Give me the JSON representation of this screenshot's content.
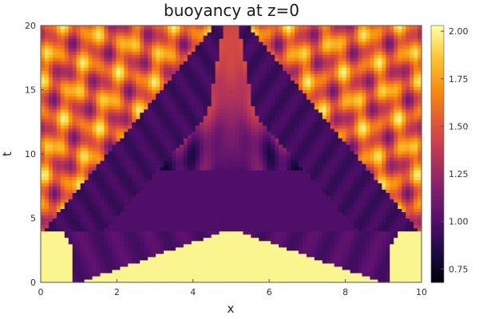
{
  "chart_data": {
    "type": "heatmap",
    "title": "buoyancy at z=0",
    "xlabel": "x",
    "ylabel": "t",
    "xlim": [
      0,
      10
    ],
    "ylim": [
      0,
      20
    ],
    "x_ticks": [
      0,
      2,
      4,
      6,
      8,
      10
    ],
    "y_ticks": [
      0,
      5,
      10,
      15,
      20
    ],
    "colorbar": {
      "colormap": "inferno",
      "range": [
        0.68,
        2.03
      ],
      "ticks": [
        "0.75",
        "1.00",
        "1.25",
        "1.50",
        "1.75",
        "2.00"
      ]
    },
    "field": {
      "symmetric_about_x": 5,
      "ambient_value": 2.0,
      "plume_value": 1.0,
      "front_speed": 0.96,
      "initial_interface_x": [
        1.0,
        9.0
      ],
      "band_half_width_x": 1.0,
      "collision_time": 8.7,
      "upper_region_range": [
        1.0,
        1.9
      ],
      "lateral_region_range": [
        1.3,
        2.0
      ]
    },
    "colors": {
      "background": "#ffffff",
      "frame": "#555555",
      "text": "#1a1a1a"
    }
  }
}
